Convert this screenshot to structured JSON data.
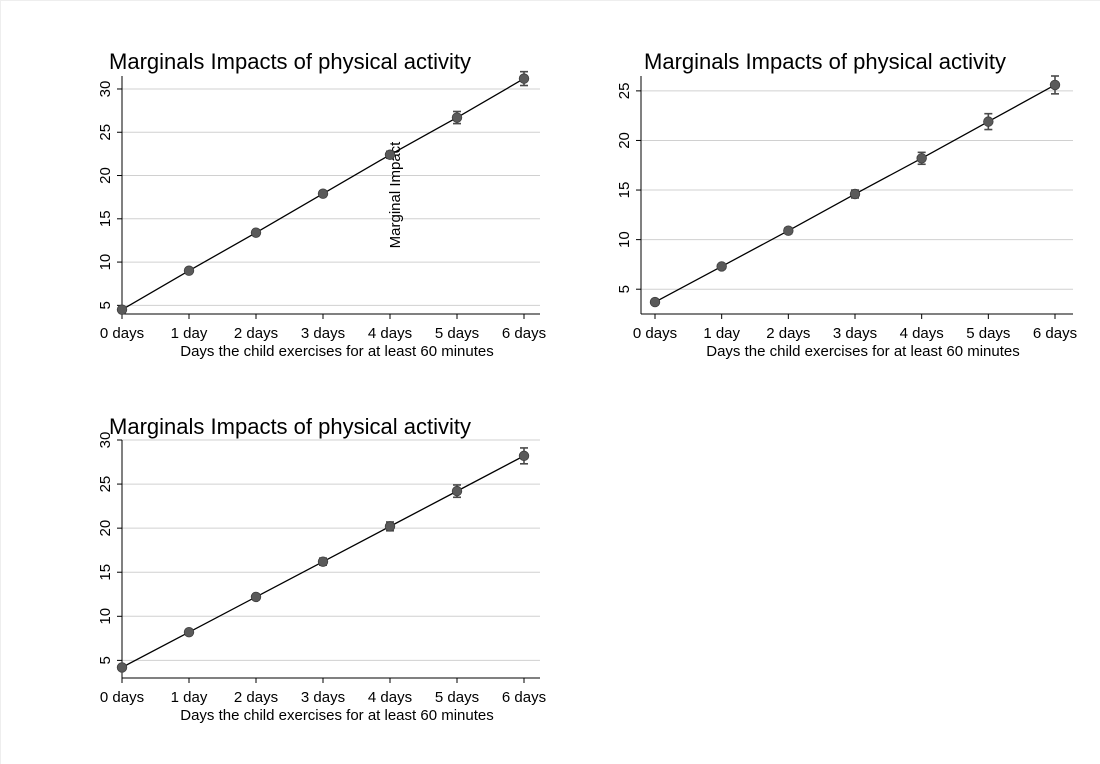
{
  "chart_data": [
    {
      "type": "line",
      "title": "Marginals Impacts of physical activity",
      "xlabel": "Days the child exercises for at least 60 minutes",
      "ylabel": "Marginal Impact",
      "categories": [
        "0 days",
        "1 day",
        "2 days",
        "3 days",
        "4 days",
        "5 days",
        "6 days"
      ],
      "yticks": [
        5,
        10,
        15,
        20,
        25,
        30
      ],
      "ylim": [
        4,
        31.5
      ],
      "grid": "horizontal",
      "series": [
        {
          "values": [
            4.5,
            9.0,
            13.4,
            17.9,
            22.4,
            26.7,
            31.2
          ],
          "err_low": [
            4.3,
            8.8,
            13.1,
            17.6,
            22.0,
            26.0,
            30.4
          ],
          "err_high": [
            4.7,
            9.2,
            13.7,
            18.2,
            22.8,
            27.4,
            32.0
          ]
        }
      ]
    },
    {
      "type": "line",
      "title": "Marginals Impacts of physical activity",
      "xlabel": "Days the child exercises for at least 60 minutes",
      "ylabel": "",
      "categories": [
        "0 days",
        "1 day",
        "2 days",
        "3 days",
        "4 days",
        "5 days",
        "6 days"
      ],
      "yticks": [
        5,
        10,
        15,
        20,
        25
      ],
      "ylim": [
        2.5,
        26.5
      ],
      "grid": "horizontal",
      "series": [
        {
          "values": [
            3.7,
            7.3,
            10.9,
            14.6,
            18.2,
            21.9,
            25.6
          ],
          "err_low": [
            3.5,
            7.1,
            10.6,
            14.2,
            17.6,
            21.1,
            24.7
          ],
          "err_high": [
            3.9,
            7.5,
            11.2,
            15.0,
            18.8,
            22.7,
            26.5
          ]
        }
      ]
    },
    {
      "type": "line",
      "title": "Marginals Impacts of physical activity",
      "xlabel": "Days the child exercises for at least 60 minutes",
      "ylabel": "",
      "categories": [
        "0 days",
        "1 day",
        "2 days",
        "3 days",
        "4 days",
        "5 days",
        "6 days"
      ],
      "yticks": [
        5,
        10,
        15,
        20,
        25,
        30
      ],
      "ylim": [
        3,
        30
      ],
      "grid": "horizontal",
      "series": [
        {
          "values": [
            4.2,
            8.2,
            12.2,
            16.2,
            20.2,
            24.2,
            28.2
          ],
          "err_low": [
            4.0,
            8.0,
            11.9,
            15.8,
            19.7,
            23.5,
            27.3
          ],
          "err_high": [
            4.4,
            8.4,
            12.5,
            16.6,
            20.7,
            24.9,
            29.1
          ]
        }
      ]
    }
  ],
  "colors": {
    "marker": "#5a5a5a",
    "errorbar": "#4a4a4a",
    "fit_line": "#000000",
    "grid": "#d0d0d0",
    "axis": "#000000"
  }
}
